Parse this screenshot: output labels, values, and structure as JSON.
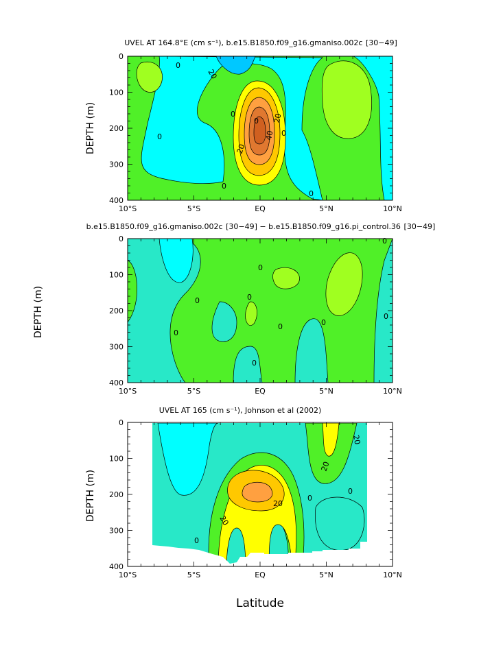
{
  "colors": {
    "cyan_light": "#00ffff",
    "cyan_med": "#28e8c8",
    "cyan_dark": "#00c8ff",
    "green_light": "#a0ff20",
    "green_mid": "#50f028",
    "yellow": "#ffff00",
    "orange_light": "#ffc800",
    "orange": "#ffa040",
    "orange_dark": "#e07830"
  },
  "chart_data": [
    {
      "type": "contour",
      "title": "UVEL AT 164.8°E (cm s⁻¹), b.e15.B1850.f09_g16.gmaniso.002c  [30−49]",
      "xlabel": "",
      "ylabel": "DEPTH (m)",
      "xticks": [
        "10°S",
        "5°S",
        "EQ",
        "5°N",
        "10°N"
      ],
      "yticks": [
        "0",
        "100",
        "200",
        "300",
        "400"
      ],
      "xlim": [
        -10,
        10
      ],
      "ylim": [
        0,
        400
      ],
      "contour_labels": [
        "0",
        "20",
        "0",
        "20",
        "40",
        "20",
        "0",
        "0",
        "0",
        "0",
        "0"
      ]
    },
    {
      "type": "contour",
      "title": "b.e15.B1850.f09_g16.gmaniso.002c  [30−49] − b.e15.B1850.f09_g16.pi_control.36  [30−49]",
      "xlabel": "",
      "ylabel": "DEPTH (m)",
      "xticks": [
        "10°S",
        "5°S",
        "EQ",
        "5°N",
        "10°N"
      ],
      "yticks": [
        "0",
        "100",
        "200",
        "300",
        "400"
      ],
      "xlim": [
        -10,
        10
      ],
      "ylim": [
        0,
        400
      ],
      "contour_labels": [
        "0",
        "0",
        "0",
        "0",
        "0",
        "0",
        "0",
        "0",
        "0"
      ]
    },
    {
      "type": "contour",
      "title": "UVEL AT 165 (cm s⁻¹), Johnson et al (2002)",
      "xlabel": "Latitude",
      "ylabel": "DEPTH (m)",
      "xticks": [
        "10°S",
        "5°S",
        "EQ",
        "5°N",
        "10°N"
      ],
      "yticks": [
        "0",
        "100",
        "200",
        "300",
        "400"
      ],
      "xlim": [
        -10,
        10
      ],
      "ylim": [
        0,
        400
      ],
      "contour_labels": [
        "20",
        "20",
        "20",
        "20",
        "0",
        "0",
        "0"
      ]
    }
  ]
}
